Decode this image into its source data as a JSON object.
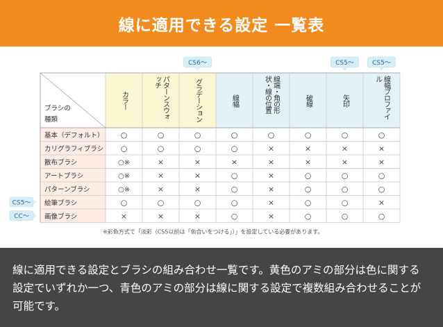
{
  "header": {
    "title": "線に適用できる設定 一覧表"
  },
  "table": {
    "corner_label": [
      "ブラシの",
      "種類"
    ],
    "columns": [
      {
        "label": "カラー",
        "group": "color",
        "badge": ""
      },
      {
        "label": "パターンスウォッチ",
        "group": "color",
        "badge": ""
      },
      {
        "label": "グラデーション",
        "group": "color",
        "badge": "CS6〜"
      },
      {
        "label": "線幅",
        "group": "line",
        "badge": ""
      },
      {
        "label": "線端・角の形状・線の位置",
        "group": "line",
        "badge": ""
      },
      {
        "label": "破線",
        "group": "line",
        "badge": ""
      },
      {
        "label": "矢印",
        "group": "line",
        "badge": "CS5〜"
      },
      {
        "label": "線幅プロファイル",
        "group": "line",
        "badge": "CS5〜"
      }
    ],
    "rows": [
      {
        "label": "基本（デフォルト）",
        "badge": "",
        "cells": [
          "○",
          "○",
          "○",
          "○",
          "○",
          "○",
          "○",
          "○"
        ]
      },
      {
        "label": "カリグラフィブラシ",
        "badge": "",
        "cells": [
          "○",
          "○",
          "○",
          "○",
          "×",
          "×",
          "×",
          "×"
        ]
      },
      {
        "label": "散布ブラシ",
        "badge": "",
        "cells": [
          "○※",
          "×",
          "×",
          "×",
          "×",
          "×",
          "×",
          "×"
        ]
      },
      {
        "label": "アートブラシ",
        "badge": "",
        "cells": [
          "○※",
          "×",
          "×",
          "○",
          "×",
          "○",
          "○",
          "○"
        ]
      },
      {
        "label": "パターンブラシ",
        "badge": "",
        "cells": [
          "○※",
          "×",
          "×",
          "○",
          "×",
          "○",
          "○",
          "○"
        ]
      },
      {
        "label": "絵筆ブラシ",
        "badge": "CS5〜",
        "cells": [
          "○",
          "○",
          "○",
          "○",
          "×",
          "○",
          "○",
          "×"
        ]
      },
      {
        "label": "画像ブラシ",
        "badge": "CC〜",
        "cells": [
          "×",
          "×",
          "×",
          "○",
          "×",
          "○",
          "○",
          "○"
        ]
      }
    ],
    "footnote": "※彩色方式で「淡彩（CS5以前は「色合いをつける」）」を設定している必要があります。"
  },
  "caption": "線に適用できる設定とブラシの組み合わせ一覧です。黄色のアミの部分は色に関する設定でいずれか一つ、青色のアミの部分は線に関する設定で複数組み合わせることが可能です。",
  "colors": {
    "header_bg": "#f28b1e",
    "color_group_bg": "#fdf6d3",
    "line_group_bg": "#e3f2f8",
    "row_label_bg": "#fdece3",
    "badge_bg": "#d8eef7",
    "caption_bg": "#454545"
  }
}
